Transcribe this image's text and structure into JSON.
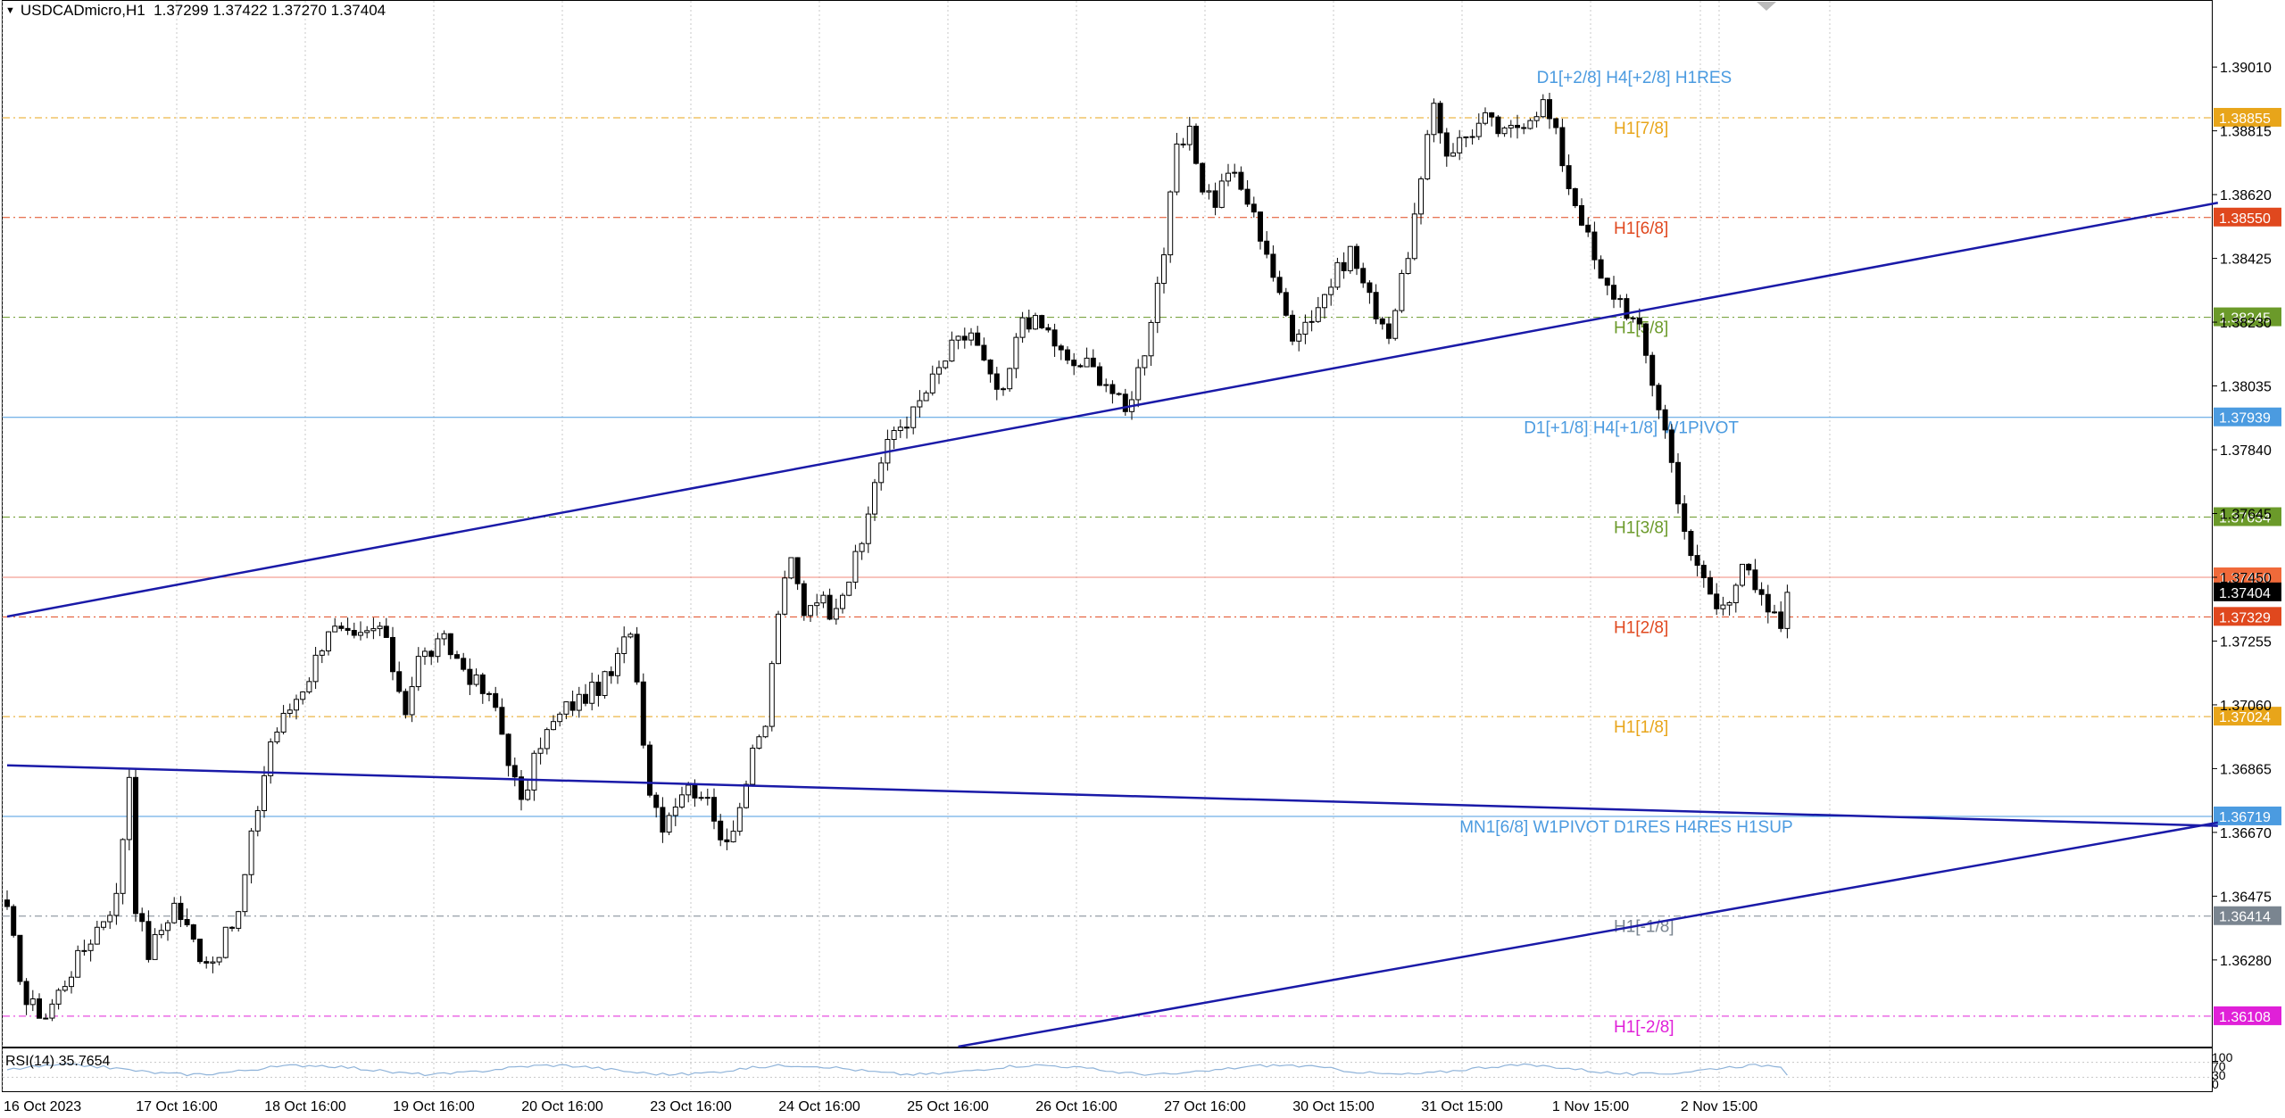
{
  "header": {
    "symbol": "USDCADmicro,H1",
    "ohlc": "1.37299 1.37422 1.37270 1.37404"
  },
  "rsi": {
    "label": "RSI(14) 35.7654",
    "value": 35.7654,
    "scale_labels": [
      "100",
      "70",
      "30",
      "0"
    ]
  },
  "colors": {
    "background": "#ffffff",
    "grid": "#c8c8c8",
    "candle": "#000000",
    "trendline": "#1a1aa8",
    "pivot_line": "#4b9be0",
    "current_price_line": "#f08878",
    "current_price_tag": "#000000"
  },
  "chart_data": {
    "type": "candlestick",
    "symbol": "USDCADmicro",
    "timeframe": "H1",
    "ylim": [
      1.36015,
      1.39215
    ],
    "y_ticks": [
      1.3628,
      1.36475,
      1.3667,
      1.36865,
      1.3706,
      1.37255,
      1.3745,
      1.37645,
      1.3784,
      1.38035,
      1.3823,
      1.38425,
      1.3862,
      1.38815,
      1.3901
    ],
    "y_tick_labels": [
      "1.36280",
      "1.36475",
      "1.36670",
      "1.36865",
      "1.37060",
      "1.37255",
      "1.37450",
      "1.37645",
      "1.37840",
      "1.38035",
      "1.38230",
      "1.38425",
      "1.38620",
      "1.38815",
      "1.39010"
    ],
    "x_labels": [
      "16 Oct 2023",
      "17 Oct 16:00",
      "18 Oct 16:00",
      "19 Oct 16:00",
      "20 Oct 16:00",
      "23 Oct 16:00",
      "24 Oct 16:00",
      "25 Oct 16:00",
      "26 Oct 16:00",
      "27 Oct 16:00",
      "30 Oct 15:00",
      "31 Oct 15:00",
      "1 Nov 15:00",
      "2 Nov 15:00"
    ],
    "x_label_bars": [
      0,
      20,
      40,
      60,
      80,
      100,
      120,
      140,
      160,
      180,
      200,
      220,
      240,
      260
    ],
    "bar_count": 278,
    "current_price": 1.37404,
    "current_tags": [
      {
        "value": 1.3745,
        "text": "1.37450",
        "color": "#f06a3a"
      },
      {
        "value": 1.37404,
        "text": "1.37404",
        "color": "#000000"
      }
    ],
    "levels": [
      {
        "value": 1.3901,
        "label": "D1[+2/8] H4[+2/8] H1RES",
        "tag": "",
        "color": "#4b9be0",
        "style": "none",
        "label_bar": 238
      },
      {
        "value": 1.38855,
        "label": "H1[7/8]",
        "tag": "1.38855",
        "color": "#e8a51a",
        "style": "dashdot",
        "label_bar": 250
      },
      {
        "value": 1.3855,
        "label": "H1[6/8]",
        "tag": "1.38550",
        "color": "#e0481e",
        "style": "dashdot",
        "label_bar": 250
      },
      {
        "value": 1.38245,
        "label": "H1[5/8]",
        "tag": "1.38245",
        "color": "#6b9a2a",
        "style": "dashdot",
        "label_bar": 250
      },
      {
        "value": 1.37939,
        "label": "D1[+1/8] H4[+1/8] W1PIVOT",
        "tag": "1.37939",
        "color": "#4b9be0",
        "style": "solid",
        "label_bar": 236
      },
      {
        "value": 1.37634,
        "label": "H1[3/8]",
        "tag": "1.37634",
        "color": "#6b9a2a",
        "style": "dashdot",
        "label_bar": 250
      },
      {
        "value": 1.37329,
        "label": "H1[2/8]",
        "tag": "1.37329",
        "color": "#e0481e",
        "style": "dashdot",
        "label_bar": 250
      },
      {
        "value": 1.37024,
        "label": "H1[1/8]",
        "tag": "1.37024",
        "color": "#e8a51a",
        "style": "dashdot",
        "label_bar": 250
      },
      {
        "value": 1.36719,
        "label": "MN1[6/8] W1PIVOT D1RES H4RES H1SUP",
        "tag": "1.36719",
        "color": "#4b9be0",
        "style": "solid",
        "label_bar": 226
      },
      {
        "value": 1.36414,
        "label": "H1[-1/8]",
        "tag": "1.36414",
        "color": "#7a8590",
        "style": "dashdot",
        "label_bar": 250
      },
      {
        "value": 1.36108,
        "label": "H1[-2/8]",
        "tag": "1.36108",
        "color": "#e020d8",
        "style": "dashdot",
        "label_bar": 250
      }
    ],
    "trendlines": [
      {
        "from": [
          0,
          1.3733
        ],
        "to": [
          344,
          1.38595
        ],
        "color": "#1a1aa8"
      },
      {
        "from": [
          0,
          1.36875
        ],
        "to": [
          344,
          1.3669
        ],
        "color": "#1a1aa8"
      },
      {
        "from": [
          148,
          1.36015
        ],
        "to": [
          344,
          1.367
        ],
        "color": "#1a1aa8"
      }
    ],
    "close_anchors": [
      [
        0,
        1.3642
      ],
      [
        3,
        1.3615
      ],
      [
        6,
        1.3611
      ],
      [
        10,
        1.3625
      ],
      [
        14,
        1.3638
      ],
      [
        17,
        1.3647
      ],
      [
        19,
        1.3685
      ],
      [
        20,
        1.3645
      ],
      [
        22,
        1.363
      ],
      [
        26,
        1.3645
      ],
      [
        30,
        1.363
      ],
      [
        32,
        1.3628
      ],
      [
        36,
        1.3642
      ],
      [
        38,
        1.3665
      ],
      [
        41,
        1.3695
      ],
      [
        44,
        1.3705
      ],
      [
        47,
        1.3715
      ],
      [
        50,
        1.373
      ],
      [
        54,
        1.3725
      ],
      [
        58,
        1.373
      ],
      [
        62,
        1.3705
      ],
      [
        64,
        1.372
      ],
      [
        68,
        1.3725
      ],
      [
        72,
        1.3715
      ],
      [
        76,
        1.3705
      ],
      [
        78,
        1.369
      ],
      [
        80,
        1.3675
      ],
      [
        83,
        1.3695
      ],
      [
        87,
        1.3705
      ],
      [
        91,
        1.371
      ],
      [
        94,
        1.3715
      ],
      [
        97,
        1.373
      ],
      [
        100,
        1.368
      ],
      [
        102,
        1.367
      ],
      [
        105,
        1.368
      ],
      [
        108,
        1.368
      ],
      [
        110,
        1.367
      ],
      [
        112,
        1.3665
      ],
      [
        114,
        1.3675
      ],
      [
        116,
        1.369
      ],
      [
        118,
        1.37
      ],
      [
        120,
        1.3735
      ],
      [
        122,
        1.375
      ],
      [
        124,
        1.3735
      ],
      [
        126,
        1.374
      ],
      [
        128,
        1.3735
      ],
      [
        131,
        1.3745
      ],
      [
        133,
        1.3755
      ],
      [
        135,
        1.3775
      ],
      [
        138,
        1.379
      ],
      [
        141,
        1.3795
      ],
      [
        144,
        1.3805
      ],
      [
        147,
        1.3815
      ],
      [
        150,
        1.382
      ],
      [
        153,
        1.3805
      ],
      [
        155,
        1.38
      ],
      [
        158,
        1.3825
      ],
      [
        162,
        1.382
      ],
      [
        165,
        1.381
      ],
      [
        168,
        1.381
      ],
      [
        171,
        1.3805
      ],
      [
        174,
        1.3795
      ],
      [
        177,
        1.3815
      ],
      [
        180,
        1.3845
      ],
      [
        182,
        1.3875
      ],
      [
        184,
        1.388
      ],
      [
        186,
        1.3865
      ],
      [
        188,
        1.386
      ],
      [
        190,
        1.387
      ],
      [
        193,
        1.386
      ],
      [
        196,
        1.3845
      ],
      [
        198,
        1.383
      ],
      [
        200,
        1.382
      ],
      [
        203,
        1.3825
      ],
      [
        206,
        1.3835
      ],
      [
        209,
        1.3845
      ],
      [
        212,
        1.383
      ],
      [
        215,
        1.382
      ],
      [
        217,
        1.3835
      ],
      [
        220,
        1.3865
      ],
      [
        222,
        1.389
      ],
      [
        224,
        1.3875
      ],
      [
        227,
        1.388
      ],
      [
        230,
        1.3885
      ],
      [
        233,
        1.388
      ],
      [
        236,
        1.3885
      ],
      [
        239,
        1.389
      ],
      [
        241,
        1.388
      ],
      [
        243,
        1.3865
      ],
      [
        245,
        1.3855
      ],
      [
        248,
        1.3835
      ],
      [
        251,
        1.383
      ],
      [
        254,
        1.382
      ],
      [
        256,
        1.3805
      ],
      [
        258,
        1.379
      ],
      [
        260,
        1.377
      ],
      [
        262,
        1.375
      ],
      [
        264,
        1.3745
      ],
      [
        266,
        1.3735
      ],
      [
        268,
        1.374
      ],
      [
        270,
        1.375
      ],
      [
        272,
        1.374
      ],
      [
        274,
        1.3735
      ],
      [
        276,
        1.373
      ],
      [
        277,
        1.37404
      ]
    ]
  }
}
